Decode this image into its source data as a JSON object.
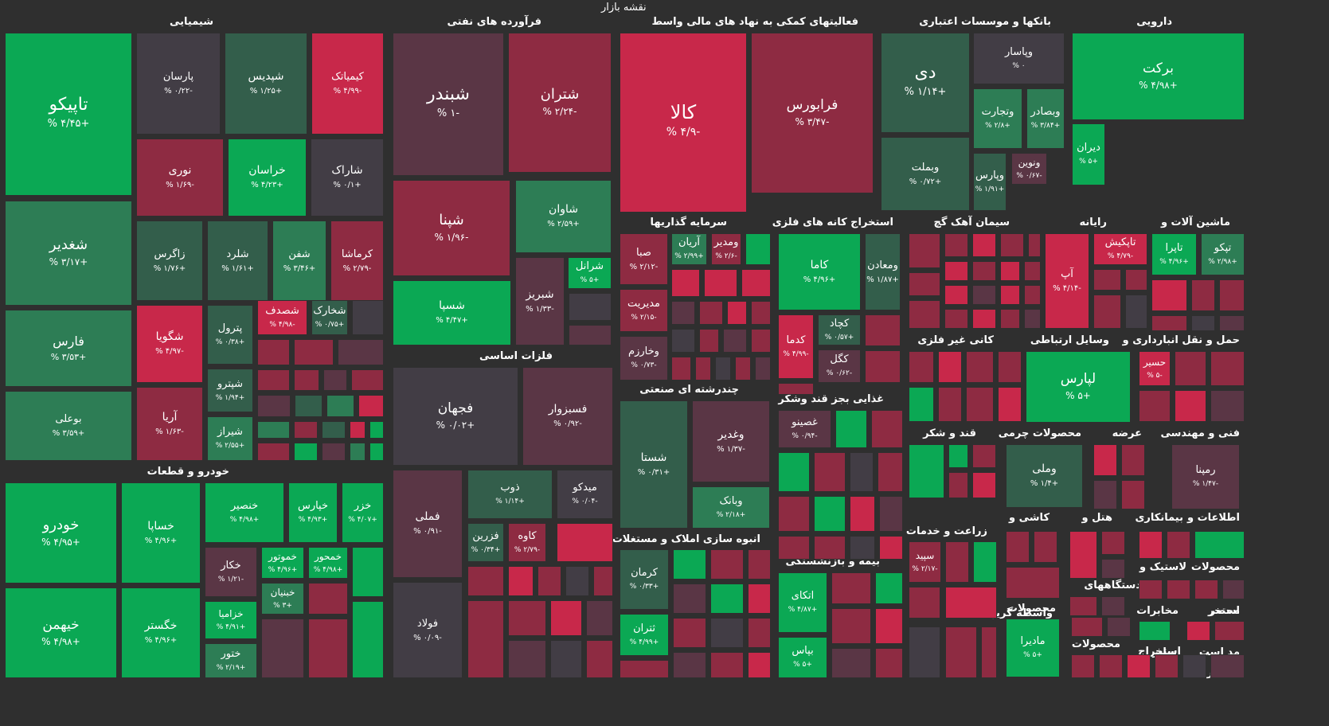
{
  "header": {
    "title": "نقشه بازار"
  },
  "colors": {
    "background": "#2f2f2f",
    "up_strong": "#0ba854",
    "up_mid": "#2d7d55",
    "up_weak": "#335e4b",
    "neutral": "#423d45",
    "down_weak": "#5a3645",
    "down_mid": "#8e2b42",
    "down_strong": "#c8284a"
  },
  "chart_data": {
    "type": "treemap",
    "sectors": [
      {
        "name": "شیمیایی",
        "tiles": [
          {
            "symbol": "تاپیکو",
            "change": "+۴/۴۵ %",
            "value": 4.45
          },
          {
            "symbol": "پارسان",
            "change": "-۰/۲۲ %",
            "value": -0.22
          },
          {
            "symbol": "شپدیس",
            "change": "+۱/۲۵ %",
            "value": 1.25
          },
          {
            "symbol": "کیمیاتک",
            "change": "-۴/۹۹ %",
            "value": -4.99
          },
          {
            "symbol": "نوری",
            "change": "-۱/۶۹ %",
            "value": -1.69
          },
          {
            "symbol": "خراسان",
            "change": "+۴/۲۳ %",
            "value": 4.23
          },
          {
            "symbol": "شاراک",
            "change": "+۰/۱ %",
            "value": 0.1
          },
          {
            "symbol": "شغدیر",
            "change": "+۳/۱۷ %",
            "value": 3.17
          },
          {
            "symbol": "زاگرس",
            "change": "+۱/۷۶ %",
            "value": 1.76
          },
          {
            "symbol": "شلرد",
            "change": "+۱/۶۱ %",
            "value": 1.61
          },
          {
            "symbol": "شفن",
            "change": "+۳/۴۶ %",
            "value": 3.46
          },
          {
            "symbol": "کرماشا",
            "change": "-۲/۷۹ %",
            "value": -2.79
          },
          {
            "symbol": "فارس",
            "change": "+۳/۵۳ %",
            "value": 3.53
          },
          {
            "symbol": "شگویا",
            "change": "-۴/۹۷ %",
            "value": -4.97
          },
          {
            "symbol": "پترول",
            "change": "+۰/۳۸ %",
            "value": 0.38
          },
          {
            "symbol": "شصدف",
            "change": "-۴/۹۸ %",
            "value": -4.98
          },
          {
            "symbol": "شخارک",
            "change": "+۰/۷۵ %",
            "value": 0.75
          },
          {
            "symbol": "بوعلی",
            "change": "+۳/۵۹ %",
            "value": 3.59
          },
          {
            "symbol": "آریا",
            "change": "-۱/۶۳ %",
            "value": -1.63
          },
          {
            "symbol": "شپترو",
            "change": "+۱/۹۴ %",
            "value": 1.94
          },
          {
            "symbol": "شیراز",
            "change": "+۲/۵۵ %",
            "value": 2.55
          }
        ]
      },
      {
        "name": "فرآورده های نفتی",
        "tiles": [
          {
            "symbol": "شبندر",
            "change": "-۱ %",
            "value": -1
          },
          {
            "symbol": "شتران",
            "change": "-۲/۲۴ %",
            "value": -2.24
          },
          {
            "symbol": "شپنا",
            "change": "-۱/۹۶ %",
            "value": -1.96
          },
          {
            "symbol": "شاوان",
            "change": "+۲/۵۹ %",
            "value": 2.59
          },
          {
            "symbol": "شرانل",
            "change": "+۵ %",
            "value": 5
          },
          {
            "symbol": "شبریز",
            "change": "-۱/۳۳ %",
            "value": -1.33
          },
          {
            "symbol": "شسپا",
            "change": "+۴/۴۷ %",
            "value": 4.47
          }
        ]
      },
      {
        "name": "فعالیتهای کمکی به نهاد های مالی واسط",
        "tiles": [
          {
            "symbol": "کالا",
            "change": "-۴/۹ %",
            "value": -4.9
          },
          {
            "symbol": "فرابورس",
            "change": "-۳/۴۷ %",
            "value": -3.47
          }
        ]
      },
      {
        "name": "بانکها و موسسات اعتباری",
        "tiles": [
          {
            "symbol": "دی",
            "change": "+۱/۱۴ %",
            "value": 1.14
          },
          {
            "symbol": "وپاسار",
            "change": "۰ %",
            "value": 0
          },
          {
            "symbol": "وتجارت",
            "change": "+۲/۸ %",
            "value": 2.8
          },
          {
            "symbol": "وبصادر",
            "change": "+۳/۸۴ %",
            "value": 3.84
          },
          {
            "symbol": "وبملت",
            "change": "+۰/۷۲ %",
            "value": 0.72
          },
          {
            "symbol": "ونوین",
            "change": "-۰/۶۷ %",
            "value": -0.67
          },
          {
            "symbol": "وپارس",
            "change": "+۱/۹۱ %",
            "value": 1.91
          }
        ]
      },
      {
        "name": "دارویی",
        "tiles": [
          {
            "symbol": "برکت",
            "change": "+۴/۹۸ %",
            "value": 4.98
          },
          {
            "symbol": "دیران",
            "change": "+۵ %",
            "value": 5
          }
        ]
      },
      {
        "name": "فلزات اساسی",
        "tiles": [
          {
            "symbol": "فجهان",
            "change": "+۰/۰۲ %",
            "value": 0.02
          },
          {
            "symbol": "فسبزوار",
            "change": "-۰/۹۲ %",
            "value": -0.92
          },
          {
            "symbol": "فملی",
            "change": "-۰/۹۱ %",
            "value": -0.91
          },
          {
            "symbol": "ذوب",
            "change": "+۱/۱۴ %",
            "value": 1.14
          },
          {
            "symbol": "میدکو",
            "change": "-۰/۰۴ %",
            "value": -0.04
          },
          {
            "symbol": "فزرین",
            "change": "+۰/۳۴ %",
            "value": 0.34
          },
          {
            "symbol": "کاوه",
            "change": "-۲/۷۹ %",
            "value": -2.79
          },
          {
            "symbol": "فولاد",
            "change": "-۰/۰۹ %",
            "value": -0.09
          }
        ]
      },
      {
        "name": "سرمایه گذاریها",
        "tiles": [
          {
            "symbol": "صبا",
            "change": "-۲/۱۲ %",
            "value": -2.12
          },
          {
            "symbol": "آریان",
            "change": "+۲/۹۹ %",
            "value": 2.99
          },
          {
            "symbol": "ومدیر",
            "change": "-۲/۶ %",
            "value": -2.6
          },
          {
            "symbol": "مدیریت",
            "change": "-۲/۱۵ %",
            "value": -2.15
          },
          {
            "symbol": "وخارزم",
            "change": "-۰/۷۳ %",
            "value": -0.73
          }
        ]
      },
      {
        "name": "استخراج کانه های فلزی",
        "tiles": [
          {
            "symbol": "کاما",
            "change": "+۴/۹۶ %",
            "value": 4.96
          },
          {
            "symbol": "ومعادن",
            "change": "+۱/۸۷ %",
            "value": 1.87
          },
          {
            "symbol": "کدما",
            "change": "-۴/۹۹ %",
            "value": -4.99
          },
          {
            "symbol": "کچاد",
            "change": "+۰/۵۷ %",
            "value": 0.57
          },
          {
            "symbol": "کگل",
            "change": "-۰/۶۲ %",
            "value": -0.62
          }
        ]
      },
      {
        "name": "سیمان آهک گچ",
        "tiles": []
      },
      {
        "name": "رایانه",
        "tiles": [
          {
            "symbol": "آپ",
            "change": "-۴/۱۴ %",
            "value": -4.14
          },
          {
            "symbol": "تاپکیش",
            "change": "-۴/۷۹ %",
            "value": -4.79
          }
        ]
      },
      {
        "name": "ماشین آلات و",
        "tiles": [
          {
            "symbol": "تاپرا",
            "change": "+۴/۹۶ %",
            "value": 4.96
          },
          {
            "symbol": "تپکو",
            "change": "+۲/۹۸ %",
            "value": 2.98
          }
        ]
      },
      {
        "name": "چندرشته ای صنعتی",
        "tiles": [
          {
            "symbol": "شستا",
            "change": "+۰/۳۱ %",
            "value": 0.31
          },
          {
            "symbol": "وغدیر",
            "change": "-۱/۳۷ %",
            "value": -1.37
          },
          {
            "symbol": "وبانک",
            "change": "+۲/۱۸ %",
            "value": 2.18
          }
        ]
      },
      {
        "name": "غذایی بجز قند وشکر",
        "tiles": [
          {
            "symbol": "غصینو",
            "change": "-۰/۹۴ %",
            "value": -0.94
          }
        ]
      },
      {
        "name": "کانی غیر فلزی",
        "tiles": []
      },
      {
        "name": "وسایل ارتباطی",
        "tiles": [
          {
            "symbol": "لپارس",
            "change": "+۵ %",
            "value": 5
          }
        ]
      },
      {
        "name": "حمل و نقل انبارداری و",
        "tiles": [
          {
            "symbol": "حسیر",
            "change": "-۵ %",
            "value": -5
          }
        ]
      },
      {
        "name": "خودرو و قطعات",
        "tiles": [
          {
            "symbol": "خودرو",
            "change": "+۴/۹۵ %",
            "value": 4.95
          },
          {
            "symbol": "خساپا",
            "change": "+۴/۹۶ %",
            "value": 4.96
          },
          {
            "symbol": "خنصیر",
            "change": "+۴/۹۸ %",
            "value": 4.98
          },
          {
            "symbol": "خپارس",
            "change": "+۴/۹۳ %",
            "value": 4.93
          },
          {
            "symbol": "خزر",
            "change": "+۴/۰۷ %",
            "value": 4.07
          },
          {
            "symbol": "خکار",
            "change": "-۱/۲۱ %",
            "value": -1.21
          },
          {
            "symbol": "خموتور",
            "change": "+۴/۹۶ %",
            "value": 4.96
          },
          {
            "symbol": "خمحور",
            "change": "+۴/۹۸ %",
            "value": 4.98
          },
          {
            "symbol": "خبنیان",
            "change": "+۳ %",
            "value": 3
          },
          {
            "symbol": "خزامیا",
            "change": "+۴/۹۱ %",
            "value": 4.91
          },
          {
            "symbol": "خیهمن",
            "change": "+۴/۹۸ %",
            "value": 4.98
          },
          {
            "symbol": "خگستر",
            "change": "+۴/۹۶ %",
            "value": 4.96
          },
          {
            "symbol": "ختور",
            "change": "+۲/۱۹ %",
            "value": 2.19
          }
        ]
      },
      {
        "name": "انبوه سازی املاک و مستغلات",
        "tiles": [
          {
            "symbol": "کرمان",
            "change": "+۰/۳۳ %",
            "value": 0.33
          },
          {
            "symbol": "ثتران",
            "change": "+۴/۹۹ %",
            "value": 4.99
          }
        ]
      },
      {
        "name": "بیمه و بازنشستگی",
        "tiles": [
          {
            "symbol": "اتکای",
            "change": "+۴/۸۷ %",
            "value": 4.87
          },
          {
            "symbol": "بپاس",
            "change": "+۵ %",
            "value": 5
          }
        ]
      },
      {
        "name": "قند و شکر",
        "tiles": []
      },
      {
        "name": "محصولات چرمی",
        "tiles": [
          {
            "symbol": "وملی",
            "change": "+۱/۴ %",
            "value": 1.4
          }
        ]
      },
      {
        "name": "عرضه",
        "tiles": []
      },
      {
        "name": "فنی و مهندسی",
        "tiles": [
          {
            "symbol": "رمپنا",
            "change": "-۱/۴۷ %",
            "value": -1.47
          }
        ]
      },
      {
        "name": "زراعت و خدمات",
        "tiles": [
          {
            "symbol": "سپید",
            "change": "-۲/۱۷ %",
            "value": -2.17
          }
        ]
      },
      {
        "name": "کاشی و",
        "tiles": []
      },
      {
        "name": "هتل و",
        "tiles": []
      },
      {
        "name": "بیمانکاری",
        "tiles": []
      },
      {
        "name": "اطلاعات و",
        "tiles": []
      },
      {
        "name": "لاستیک و",
        "tiles": []
      },
      {
        "name": "محصولات",
        "tiles": []
      },
      {
        "name": "دستگاههای",
        "tiles": []
      },
      {
        "name": "واسطه گریهای مالی",
        "tiles": []
      },
      {
        "name": "محصولات",
        "tiles": [
          {
            "symbol": "مادیرا",
            "change": "+۵ %",
            "value": 5
          }
        ]
      },
      {
        "name": "مخابرات",
        "tiles": []
      },
      {
        "name": "استخر",
        "tiles": []
      },
      {
        "name": "محصولات",
        "tiles": []
      },
      {
        "name": "استخراج",
        "tiles": []
      },
      {
        "name": "سایر",
        "tiles": []
      },
      {
        "name": "مد است",
        "tiles": []
      },
      {
        "name": "بالا خرده",
        "tiles": []
      },
      {
        "name": "محصر",
        "tiles": []
      }
    ]
  }
}
